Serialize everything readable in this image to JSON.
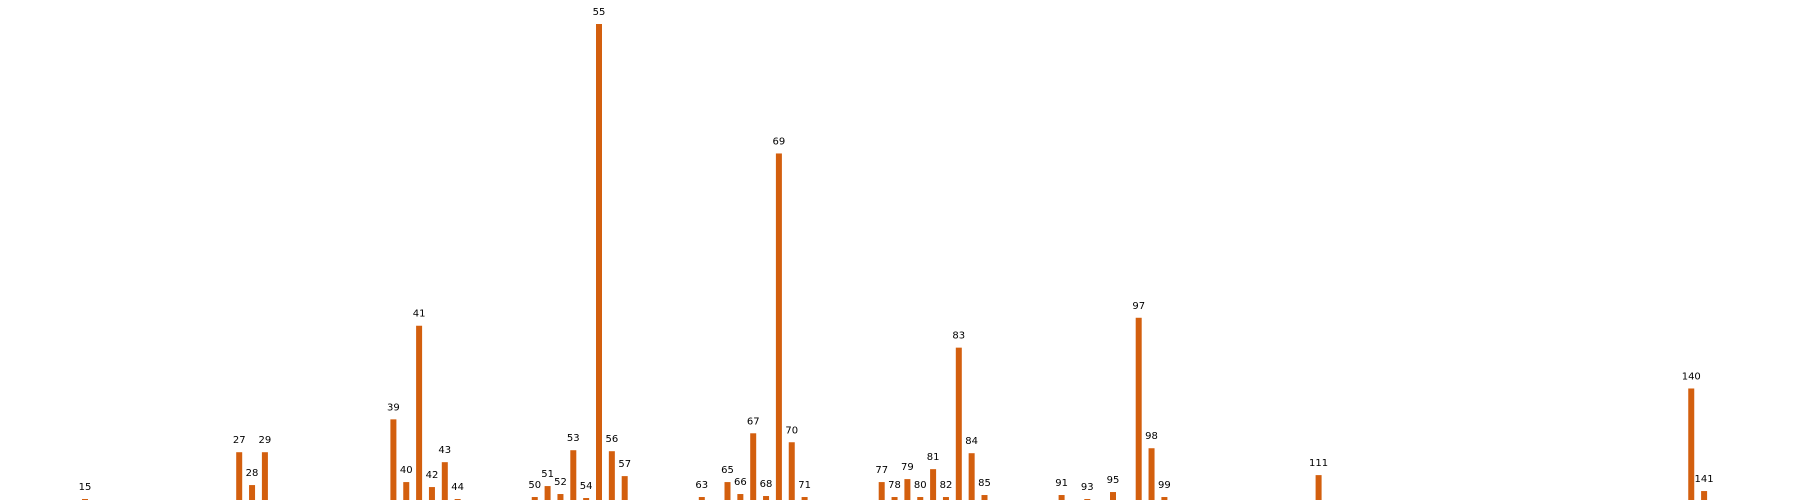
{
  "chart_data": {
    "type": "bar",
    "title": "",
    "xlabel": "",
    "ylabel": "",
    "grid": false,
    "axes_visible": false,
    "bar_color": "#d35f0e",
    "xlim": [
      10,
      148
    ],
    "ylim": [
      0,
      480
    ],
    "categories": [
      "15",
      "27",
      "28",
      "29",
      "39",
      "40",
      "41",
      "42",
      "43",
      "44",
      "50",
      "51",
      "52",
      "53",
      "54",
      "55",
      "56",
      "57",
      "63",
      "65",
      "66",
      "67",
      "68",
      "69",
      "70",
      "71",
      "77",
      "78",
      "79",
      "80",
      "81",
      "82",
      "83",
      "84",
      "85",
      "91",
      "93",
      "95",
      "97",
      "98",
      "99",
      "111",
      "140",
      "141"
    ],
    "values": [
      3,
      50,
      17,
      50,
      83,
      20,
      177,
      15,
      40,
      3,
      5,
      16,
      8,
      52,
      4,
      480,
      51,
      26,
      5,
      20,
      8,
      69,
      6,
      350,
      60,
      5,
      20,
      5,
      23,
      5,
      33,
      5,
      155,
      49,
      7,
      7,
      3,
      10,
      185,
      54,
      5,
      27,
      114,
      11
    ]
  }
}
